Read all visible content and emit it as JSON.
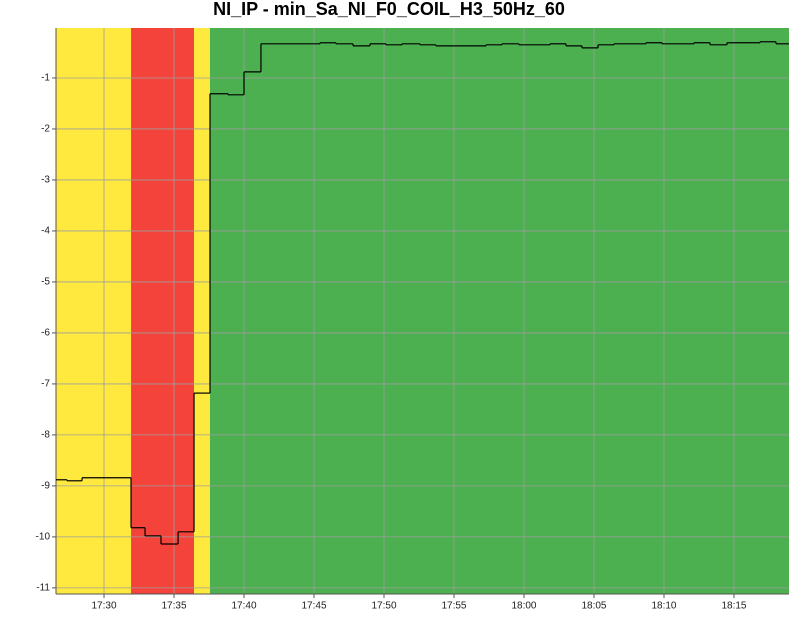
{
  "chart_data": {
    "type": "line",
    "step": "post",
    "title": "NI_IP - min_Sa_NI_F0_COIL_H3_50Hz_60",
    "x": [
      1046.57,
      1047.36,
      1048.43,
      1051.93,
      1052.93,
      1054.07,
      1055.29,
      1056.43,
      1057.57,
      1058.86,
      1060.0,
      1061.21,
      1065.43,
      1066.57,
      1067.79,
      1069.0,
      1070.14,
      1071.29,
      1072.57,
      1073.71,
      1077.29,
      1078.43,
      1079.64,
      1081.86,
      1083.0,
      1084.14,
      1085.29,
      1086.43,
      1088.71,
      1089.86,
      1092.14,
      1093.29,
      1094.5,
      1096.86,
      1098.0
    ],
    "values": [
      -8.88,
      -8.9,
      -8.84,
      -9.82,
      -9.98,
      -10.14,
      -9.9,
      -7.18,
      -1.31,
      -1.33,
      -0.88,
      -0.33,
      -0.31,
      -0.33,
      -0.37,
      -0.33,
      -0.35,
      -0.33,
      -0.35,
      -0.37,
      -0.35,
      -0.33,
      -0.35,
      -0.33,
      -0.37,
      -0.41,
      -0.35,
      -0.33,
      -0.31,
      -0.33,
      -0.31,
      -0.35,
      -0.31,
      -0.29,
      -0.33
    ],
    "color": "#000000",
    "regions": [
      {
        "from": 1046.57,
        "to": 1051.93,
        "color": "#ffe93f"
      },
      {
        "from": 1051.93,
        "to": 1056.43,
        "color": "#f4433a"
      },
      {
        "from": 1056.43,
        "to": 1057.57,
        "color": "#ffe93f"
      },
      {
        "from": 1057.57,
        "to": 1098.93,
        "color": "#4caf50"
      }
    ],
    "xlim": [
      1046.57,
      1098.93
    ],
    "xticks": [
      {
        "value": 1050,
        "label": "17:30"
      },
      {
        "value": 1055,
        "label": "17:35"
      },
      {
        "value": 1060,
        "label": "17:40"
      },
      {
        "value": 1065,
        "label": "17:45"
      },
      {
        "value": 1070,
        "label": "17:50"
      },
      {
        "value": 1075,
        "label": "17:55"
      },
      {
        "value": 1080,
        "label": "18:00"
      },
      {
        "value": 1085,
        "label": "18:05"
      },
      {
        "value": 1090,
        "label": "18:10"
      },
      {
        "value": 1095,
        "label": "18:15"
      }
    ],
    "ylim": [
      -11.12,
      -0.02
    ],
    "yticks": [
      -1,
      -2,
      -3,
      -4,
      -5,
      -6,
      -7,
      -8,
      -9,
      -10,
      -11
    ],
    "grid": true
  }
}
